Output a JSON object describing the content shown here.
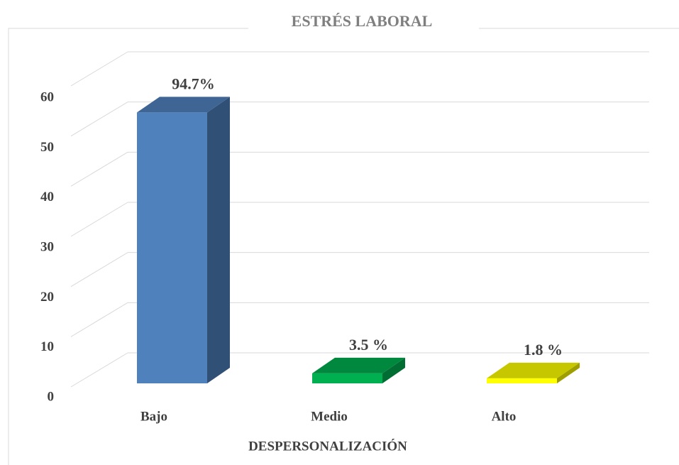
{
  "chart_data": {
    "type": "bar3d",
    "title": "ESTRÉS LABORAL",
    "x_label": "DESPERSONALIZACIÓN",
    "categories": [
      "Bajo",
      "Medio",
      "Alto"
    ],
    "values": [
      54,
      2,
      1
    ],
    "value_labels": [
      "94.7%",
      "3.5 %",
      "1.8 %"
    ],
    "colors": [
      "#4f81bd",
      "#00b050",
      "#ffff00"
    ],
    "ylim": [
      0,
      60
    ],
    "yticks": [
      0,
      10,
      20,
      30,
      40,
      50,
      60
    ],
    "grid": true
  }
}
